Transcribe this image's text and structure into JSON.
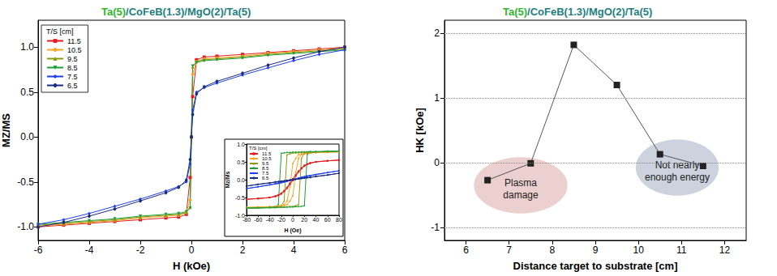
{
  "chart_data": [
    {
      "type": "line",
      "title": "Ta(5)/CoFeB(1.3)/MgO(2)/Ta(5)",
      "x_label": "H (kOe)",
      "y_label": "MZ/MS",
      "legend": "upper left",
      "legend_title": "T/S [cm]",
      "x": [
        -6,
        -5,
        -4,
        -3,
        -2,
        -1,
        -0.5,
        -0.2,
        -0.05,
        0,
        0.05,
        0.2,
        0.5,
        1,
        2,
        3,
        4,
        5,
        6
      ],
      "series": [
        {
          "name": "11.5",
          "color": "#e41a1c",
          "marker": "square",
          "values": [
            -1.0,
            -0.98,
            -0.96,
            -0.94,
            -0.92,
            -0.9,
            -0.89,
            -0.86,
            -0.45,
            0,
            0.45,
            0.86,
            0.89,
            0.9,
            0.92,
            0.94,
            0.96,
            0.98,
            1.0
          ]
        },
        {
          "name": "10.5",
          "color": "#f5a623",
          "marker": "circle",
          "values": [
            -0.99,
            -0.97,
            -0.95,
            -0.93,
            -0.9,
            -0.88,
            -0.87,
            -0.84,
            -0.7,
            0,
            0.7,
            0.84,
            0.87,
            0.88,
            0.9,
            0.93,
            0.95,
            0.97,
            0.99
          ]
        },
        {
          "name": "9.5",
          "color": "#8c9a0e",
          "marker": "triangle",
          "values": [
            -0.98,
            -0.96,
            -0.94,
            -0.92,
            -0.89,
            -0.87,
            -0.86,
            -0.84,
            -0.78,
            0,
            0.78,
            0.84,
            0.86,
            0.87,
            0.89,
            0.92,
            0.94,
            0.96,
            0.98
          ]
        },
        {
          "name": "8.5",
          "color": "#1f9e3a",
          "marker": "triangle-down",
          "values": [
            -0.97,
            -0.95,
            -0.93,
            -0.91,
            -0.88,
            -0.86,
            -0.85,
            -0.83,
            -0.79,
            0,
            0.79,
            0.83,
            0.85,
            0.86,
            0.88,
            0.91,
            0.93,
            0.95,
            0.97
          ]
        },
        {
          "name": "7.5",
          "color": "#1f3ff0",
          "marker": "diamond",
          "values": [
            -0.97,
            -0.92,
            -0.85,
            -0.77,
            -0.69,
            -0.6,
            -0.55,
            -0.5,
            -0.3,
            0,
            0.3,
            0.5,
            0.55,
            0.6,
            0.69,
            0.77,
            0.85,
            0.92,
            0.97
          ]
        },
        {
          "name": "6.5",
          "color": "#1a2a80",
          "marker": "hexagon",
          "values": [
            -1.0,
            -0.95,
            -0.88,
            -0.8,
            -0.71,
            -0.62,
            -0.56,
            -0.48,
            -0.25,
            0,
            0.25,
            0.48,
            0.56,
            0.62,
            0.71,
            0.8,
            0.88,
            0.95,
            1.0
          ]
        }
      ],
      "xlim": [
        -6,
        6
      ],
      "xticks": [
        -6,
        -4,
        -2,
        0,
        2,
        4,
        6
      ],
      "ylim": [
        -1.15,
        1.3
      ],
      "yticks": [
        {
          "value": -1,
          "label": "-1.0"
        },
        {
          "value": -0.5,
          "label": "-0.5"
        },
        {
          "value": 0,
          "label": "0.0"
        },
        {
          "value": 0.5,
          "label": "0.5"
        },
        {
          "value": 1,
          "label": "1.0"
        }
      ],
      "grid": false
    },
    {
      "type": "line",
      "x_label": "H (Oe)",
      "y_label": "Mz/Ms",
      "legend": "upper left",
      "legend_title": "T/S [cm]",
      "x": [
        -80,
        -60,
        -40,
        -30,
        -25,
        -20,
        -15,
        -10,
        -5,
        0,
        5,
        10,
        15,
        20,
        25,
        30,
        40,
        60,
        80,
        80,
        60,
        40,
        30,
        25,
        20,
        15,
        10,
        5,
        0,
        -5,
        -10,
        -15,
        -20,
        -25,
        -30,
        -40,
        -60,
        -80
      ],
      "series": [
        {
          "name": "11.5",
          "color": "#e41a1c",
          "marker": "square",
          "values": [
            -0.55,
            -0.53,
            -0.5,
            -0.47,
            -0.44,
            -0.4,
            -0.33,
            -0.24,
            -0.13,
            -0.02,
            0.1,
            0.22,
            0.31,
            0.38,
            0.43,
            0.46,
            0.5,
            0.53,
            0.55,
            0.55,
            0.53,
            0.5,
            0.47,
            0.44,
            0.4,
            0.33,
            0.24,
            0.13,
            0.02,
            -0.1,
            -0.22,
            -0.31,
            -0.38,
            -0.43,
            -0.46,
            -0.5,
            -0.53,
            -0.55
          ]
        },
        {
          "name": "10.5",
          "color": "#f5a623",
          "marker": "circle",
          "values": [
            -0.78,
            -0.77,
            -0.76,
            -0.75,
            -0.74,
            -0.73,
            -0.72,
            -0.7,
            -0.6,
            -0.45,
            0.2,
            0.6,
            0.7,
            0.73,
            0.74,
            0.75,
            0.76,
            0.77,
            0.78,
            0.78,
            0.77,
            0.76,
            0.75,
            0.74,
            0.73,
            0.72,
            0.7,
            0.6,
            0.45,
            -0.2,
            -0.6,
            -0.7,
            -0.73,
            -0.74,
            -0.75,
            -0.76,
            -0.77,
            -0.78
          ]
        },
        {
          "name": "9.5",
          "color": "#8c9a0e",
          "marker": "triangle",
          "values": [
            -0.79,
            -0.79,
            -0.78,
            -0.78,
            -0.77,
            -0.77,
            -0.76,
            -0.76,
            -0.75,
            -0.75,
            -0.73,
            -0.7,
            0.6,
            0.74,
            0.76,
            0.77,
            0.78,
            0.79,
            0.79,
            0.79,
            0.79,
            0.78,
            0.78,
            0.77,
            0.77,
            0.76,
            0.76,
            0.75,
            0.75,
            0.73,
            0.7,
            -0.6,
            -0.74,
            -0.76,
            -0.77,
            -0.78,
            -0.79,
            -0.79
          ]
        },
        {
          "name": "8.5",
          "color": "#1f9e3a",
          "marker": "triangle-down",
          "values": [
            -0.8,
            -0.8,
            -0.79,
            -0.79,
            -0.78,
            -0.78,
            -0.78,
            -0.77,
            -0.77,
            -0.77,
            -0.76,
            -0.76,
            -0.75,
            -0.74,
            0.7,
            0.77,
            0.78,
            0.79,
            0.8,
            0.8,
            0.8,
            0.79,
            0.79,
            0.78,
            0.78,
            0.78,
            0.77,
            0.77,
            0.77,
            0.76,
            0.76,
            0.75,
            0.74,
            -0.7,
            -0.77,
            -0.78,
            -0.79,
            -0.8
          ]
        },
        {
          "name": "7.5",
          "color": "#1f3ff0",
          "marker": "diamond",
          "values": [
            -0.25,
            -0.2,
            -0.14,
            -0.11,
            -0.09,
            -0.07,
            -0.05,
            -0.03,
            -0.01,
            0.01,
            0.03,
            0.05,
            0.07,
            0.09,
            0.11,
            0.12,
            0.15,
            0.2,
            0.25,
            0.25,
            0.2,
            0.14,
            0.11,
            0.09,
            0.07,
            0.05,
            0.03,
            0.01,
            -0.01,
            -0.03,
            -0.05,
            -0.07,
            -0.09,
            -0.11,
            -0.12,
            -0.15,
            -0.2,
            -0.25
          ]
        },
        {
          "name": "6.5",
          "color": "#1a2a80",
          "marker": "hexagon",
          "values": [
            -0.18,
            -0.13,
            -0.09,
            -0.065,
            -0.055,
            -0.045,
            -0.035,
            -0.02,
            -0.01,
            0,
            0.01,
            0.02,
            0.035,
            0.045,
            0.055,
            0.065,
            0.09,
            0.13,
            0.18,
            0.18,
            0.13,
            0.09,
            0.065,
            0.055,
            0.045,
            0.035,
            0.02,
            0.01,
            0,
            -0.01,
            -0.02,
            -0.035,
            -0.045,
            -0.055,
            -0.065,
            -0.09,
            -0.13,
            -0.18
          ]
        }
      ],
      "xlim": [
        -80,
        80
      ],
      "xticks": [
        -80,
        -60,
        -40,
        -20,
        0,
        20,
        40,
        60,
        80
      ],
      "ylim": [
        -1,
        1
      ],
      "yticks": [
        {
          "value": -1,
          "label": "-1.0"
        },
        {
          "value": -0.5,
          "label": "-0.5"
        },
        {
          "value": 0,
          "label": "0.0"
        },
        {
          "value": 0.5,
          "label": "0.5"
        },
        {
          "value": 1,
          "label": "1.0"
        }
      ],
      "grid": false
    },
    {
      "type": "line",
      "title": "Ta(5)/CoFeB(1.3)/MgO(2)/Ta(5)",
      "x_label": "Distance target to substrate [cm]",
      "y_label": "HK [kOe]",
      "x": [
        6.5,
        7.5,
        8.5,
        9.5,
        10.5,
        11.5
      ],
      "values": [
        -0.27,
        -0.01,
        1.82,
        1.2,
        0.13,
        -0.05
      ],
      "color": "#222222",
      "marker": "square",
      "xlim": [
        5.5,
        12.5
      ],
      "xticks": [
        6,
        7,
        8,
        9,
        10,
        11,
        12
      ],
      "ylim": [
        -1.2,
        2.2
      ],
      "yticks": [
        -1,
        0,
        1,
        2
      ],
      "grid": true,
      "annotations": [
        {
          "text": "Plasma\ndamage"
        },
        {
          "text": "Not nearly\nenough energy"
        }
      ]
    }
  ]
}
